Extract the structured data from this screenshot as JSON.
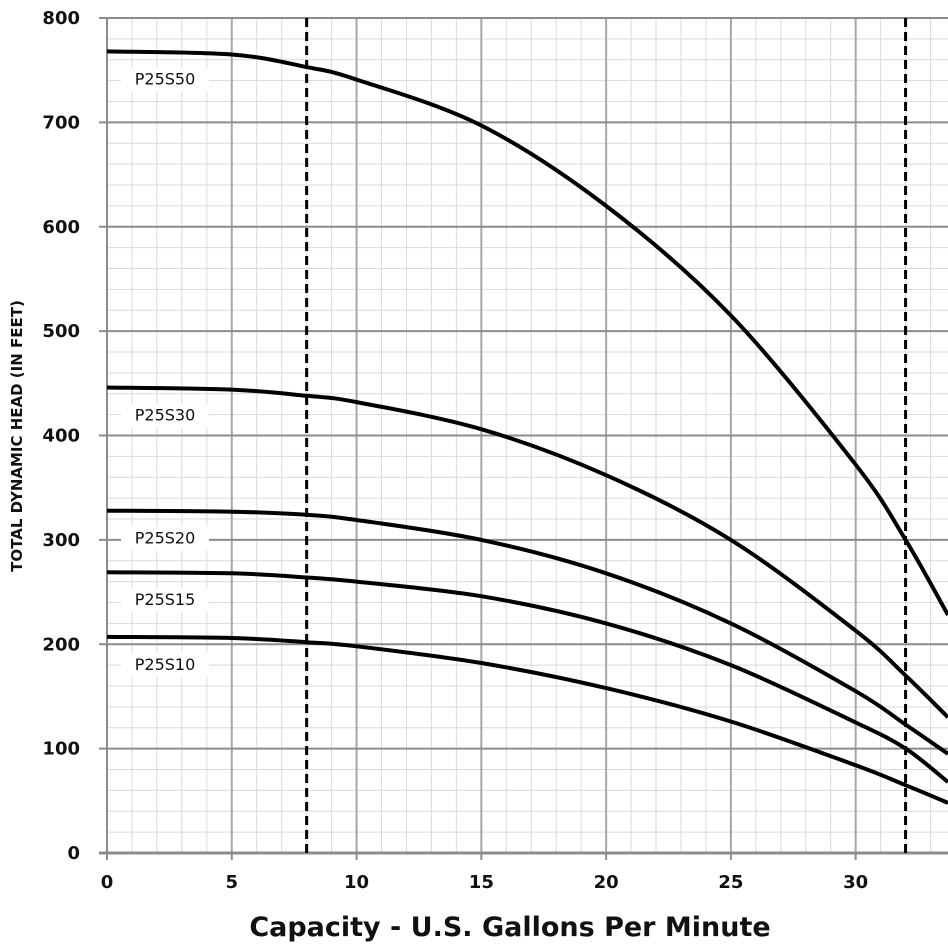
{
  "chart_data": {
    "type": "line",
    "xlabel": "Capacity - U.S. Gallons Per Minute",
    "ylabel": "TOTAL DYNAMIC HEAD (IN FEET)",
    "xlim": [
      0,
      33.7
    ],
    "ylim": [
      0,
      800
    ],
    "x_ticks": [
      "0",
      "5",
      "10",
      "15",
      "20",
      "25",
      "30"
    ],
    "y_ticks": [
      "0",
      "100",
      "200",
      "300",
      "400",
      "500",
      "600",
      "700",
      "800"
    ],
    "grid": true,
    "reference_lines_x": [
      8,
      32
    ],
    "series": [
      {
        "name": "P25S50",
        "x": [
          0,
          5,
          8,
          10,
          15,
          20,
          25,
          30,
          32,
          33.7
        ],
        "y": [
          768,
          765,
          753,
          741,
          697,
          620,
          515,
          372,
          300,
          228
        ]
      },
      {
        "name": "P25S30",
        "x": [
          0,
          5,
          8,
          10,
          15,
          20,
          25,
          30,
          32,
          33.7
        ],
        "y": [
          446,
          444,
          438,
          432,
          406,
          362,
          300,
          213,
          170,
          130
        ]
      },
      {
        "name": "P25S20",
        "x": [
          0,
          5,
          8,
          10,
          15,
          20,
          25,
          30,
          32,
          33.7
        ],
        "y": [
          328,
          327,
          324,
          319,
          300,
          268,
          220,
          155,
          123,
          95
        ]
      },
      {
        "name": "P25S15",
        "x": [
          0,
          5,
          8,
          10,
          15,
          20,
          25,
          30,
          32,
          33.7
        ],
        "y": [
          269,
          268,
          264,
          260,
          246,
          220,
          180,
          125,
          100,
          68
        ]
      },
      {
        "name": "P25S10",
        "x": [
          0,
          5,
          8,
          10,
          15,
          20,
          25,
          30,
          32,
          33.7
        ],
        "y": [
          207,
          206,
          202,
          198,
          182,
          158,
          126,
          84,
          65,
          48
        ]
      }
    ]
  }
}
